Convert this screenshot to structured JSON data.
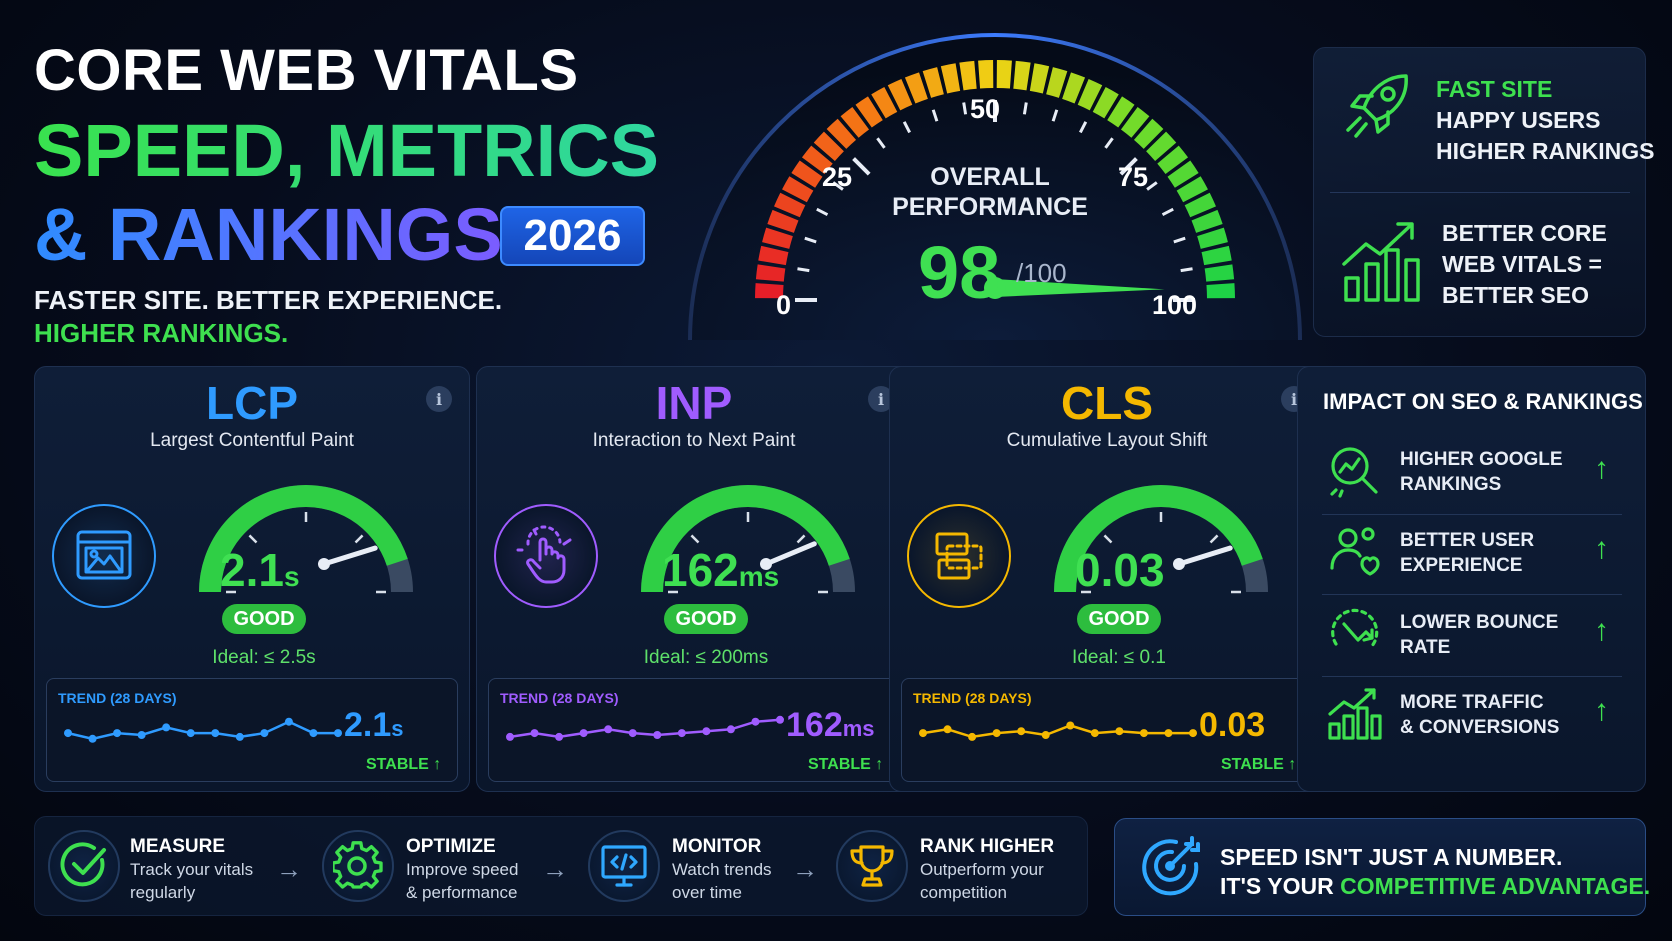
{
  "hero": {
    "line1": "CORE WEB VITALS",
    "line2": "SPEED, METRICS",
    "line3": "& RANKINGS",
    "year": "2026",
    "tagline1": "FASTER SITE. BETTER EXPERIENCE.",
    "tagline2": "HIGHER RANKINGS."
  },
  "overall": {
    "label_line1": "OVERALL",
    "label_line2": "PERFORMANCE",
    "score": "98",
    "max": "/100",
    "ticks": [
      "0",
      "25",
      "50",
      "75",
      "100"
    ],
    "score_value": 98,
    "range": [
      0,
      100
    ]
  },
  "promo": {
    "block1": [
      "FAST SITE",
      "HAPPY USERS",
      "HIGHER RANKINGS"
    ],
    "block2": [
      "BETTER CORE",
      "WEB VITALS =",
      "BETTER SEO"
    ]
  },
  "metrics": [
    {
      "abbr": "LCP",
      "name": "Largest Contentful Paint",
      "value": "2.1",
      "unit": "s",
      "status": "GOOD",
      "ideal": "Ideal: ≤ 2.5s",
      "trend_label": "TREND (28 DAYS)",
      "trend_status": "STABLE",
      "accent": "#2f9bff",
      "icon": "image-window-icon",
      "gauge_level": 0.82,
      "trend": [
        0.45,
        0.6,
        0.45,
        0.5,
        0.3,
        0.45,
        0.45,
        0.55,
        0.45,
        0.15,
        0.45,
        0.45
      ]
    },
    {
      "abbr": "INP",
      "name": "Interaction to Next Paint",
      "value": "162",
      "unit": "ms",
      "status": "GOOD",
      "ideal": "Ideal: ≤ 200ms",
      "trend_label": "TREND (28 DAYS)",
      "trend_status": "STABLE",
      "accent": "#a05cff",
      "icon": "tap-hand-icon",
      "gauge_level": 0.8,
      "trend": [
        0.55,
        0.45,
        0.55,
        0.45,
        0.35,
        0.45,
        0.5,
        0.45,
        0.4,
        0.35,
        0.15,
        0.1
      ]
    },
    {
      "abbr": "CLS",
      "name": "Cumulative Layout Shift",
      "value": "0.03",
      "unit": "",
      "status": "GOOD",
      "ideal": "Ideal: ≤ 0.1",
      "trend_label": "TREND (28 DAYS)",
      "trend_status": "STABLE",
      "accent": "#f5b800",
      "icon": "layout-shift-icon",
      "gauge_level": 0.82,
      "trend": [
        0.45,
        0.35,
        0.55,
        0.45,
        0.4,
        0.5,
        0.25,
        0.45,
        0.4,
        0.45,
        0.45,
        0.45
      ]
    }
  ],
  "impact": {
    "title": "IMPACT ON SEO & RANKINGS",
    "items": [
      {
        "line1": "HIGHER GOOGLE",
        "line2": "RANKINGS",
        "icon": "search-chart-icon"
      },
      {
        "line1": "BETTER USER",
        "line2": "EXPERIENCE",
        "icon": "users-heart-icon"
      },
      {
        "line1": "LOWER BOUNCE",
        "line2": "RATE",
        "icon": "bounce-arrow-icon"
      },
      {
        "line1": "MORE TRAFFIC",
        "line2": "& CONVERSIONS",
        "icon": "growth-chart-icon"
      }
    ]
  },
  "steps": [
    {
      "title": "MEASURE",
      "desc1": "Track your vitals",
      "desc2": "regularly",
      "icon": "check-circle-icon"
    },
    {
      "title": "OPTIMIZE",
      "desc1": "Improve speed",
      "desc2": "& performance",
      "icon": "gear-icon"
    },
    {
      "title": "MONITOR",
      "desc1": "Watch trends",
      "desc2": "over time",
      "icon": "monitor-code-icon"
    },
    {
      "title": "RANK HIGHER",
      "desc1": "Outperform your",
      "desc2": "competition",
      "icon": "trophy-icon"
    }
  ],
  "cta": {
    "line1": "SPEED ISN'T JUST A NUMBER.",
    "line2_prefix": "IT'S YOUR ",
    "line2_highlight": "COMPETITIVE ADVANTAGE.",
    "icon": "target-icon"
  }
}
